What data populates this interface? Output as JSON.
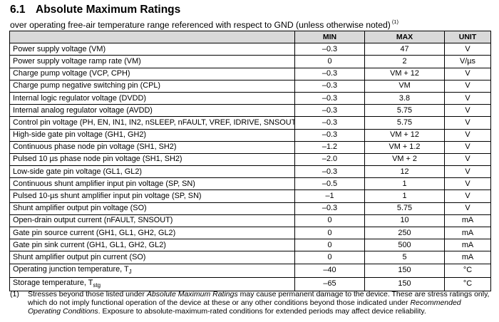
{
  "section": {
    "number": "6.1",
    "title": "Absolute Maximum Ratings"
  },
  "subtitle": {
    "text": "over operating free-air temperature range referenced with respect to GND (unless otherwise noted)",
    "ref": "(1)"
  },
  "table": {
    "headers": [
      "",
      "MIN",
      "MAX",
      "UNIT"
    ],
    "rows": [
      {
        "param": "Power supply voltage (VM)",
        "min": "–0.3",
        "max": "47",
        "unit": "V"
      },
      {
        "param": "Power supply voltage ramp rate (VM)",
        "min": "0",
        "max": "2",
        "unit": "V/µs"
      },
      {
        "param": "Charge pump voltage (VCP, CPH)",
        "min": "–0.3",
        "max": "VM + 12",
        "unit": "V"
      },
      {
        "param": "Charge pump negative switching pin (CPL)",
        "min": "–0.3",
        "max": "VM",
        "unit": "V"
      },
      {
        "param": "Internal logic regulator voltage (DVDD)",
        "min": "–0.3",
        "max": "3.8",
        "unit": "V"
      },
      {
        "param": "Internal analog regulator voltage (AVDD)",
        "min": "–0.3",
        "max": "5.75",
        "unit": "V"
      },
      {
        "param": "Control pin voltage (PH, EN, IN1, IN2, nSLEEP, nFAULT, VREF, IDRIVE, SNSOUT)",
        "min": "–0.3",
        "max": "5.75",
        "unit": "V"
      },
      {
        "param": "High-side gate pin voltage (GH1, GH2)",
        "min": "–0.3",
        "max": "VM + 12",
        "unit": "V"
      },
      {
        "param": "Continuous phase node pin voltage (SH1, SH2)",
        "min": "–1.2",
        "max": "VM + 1.2",
        "unit": "V"
      },
      {
        "param": "Pulsed 10 µs phase node pin voltage (SH1, SH2)",
        "min": "–2.0",
        "max": "VM + 2",
        "unit": "V"
      },
      {
        "param": "Low-side gate pin voltage (GL1, GL2)",
        "min": "–0.3",
        "max": "12",
        "unit": "V"
      },
      {
        "param": "Continuous shunt amplifier input pin voltage (SP, SN)",
        "min": "–0.5",
        "max": "1",
        "unit": "V"
      },
      {
        "param": "Pulsed 10-µs shunt amplifier input pin voltage (SP, SN)",
        "min": "–1",
        "max": "1",
        "unit": "V"
      },
      {
        "param": "Shunt amplifier output pin voltage (SO)",
        "min": "–0.3",
        "max": "5.75",
        "unit": "V"
      },
      {
        "param": "Open-drain output current (nFAULT, SNSOUT)",
        "min": "0",
        "max": "10",
        "unit": "mA"
      },
      {
        "param": "Gate pin source current (GH1, GL1, GH2, GL2)",
        "min": "0",
        "max": "250",
        "unit": "mA"
      },
      {
        "param": "Gate pin sink current (GH1, GL1, GH2, GL2)",
        "min": "0",
        "max": "500",
        "unit": "mA"
      },
      {
        "param": "Shunt amplifier output pin current (SO)",
        "min": "0",
        "max": "5",
        "unit": "mA"
      }
    ],
    "temp_rows": [
      {
        "param": "Operating junction temperature, T",
        "sub": "J",
        "min": "–40",
        "max": "150",
        "unit": "°C"
      },
      {
        "param": "Storage temperature, T",
        "sub": "stg",
        "min": "–65",
        "max": "150",
        "unit": "°C"
      }
    ]
  },
  "footnote": {
    "marker": "(1)",
    "part1": "Stresses beyond those listed under ",
    "em1": "Absolute Maximum Ratings",
    "part2": " may cause permanent damage to the device. These are stress ratings only, which do not imply functional operation of the device at these or any other conditions beyond those indicated under ",
    "em2": "Recommended Operating Conditions",
    "part3": ". Exposure to absolute-maximum-rated conditions for extended periods may affect device reliability."
  }
}
